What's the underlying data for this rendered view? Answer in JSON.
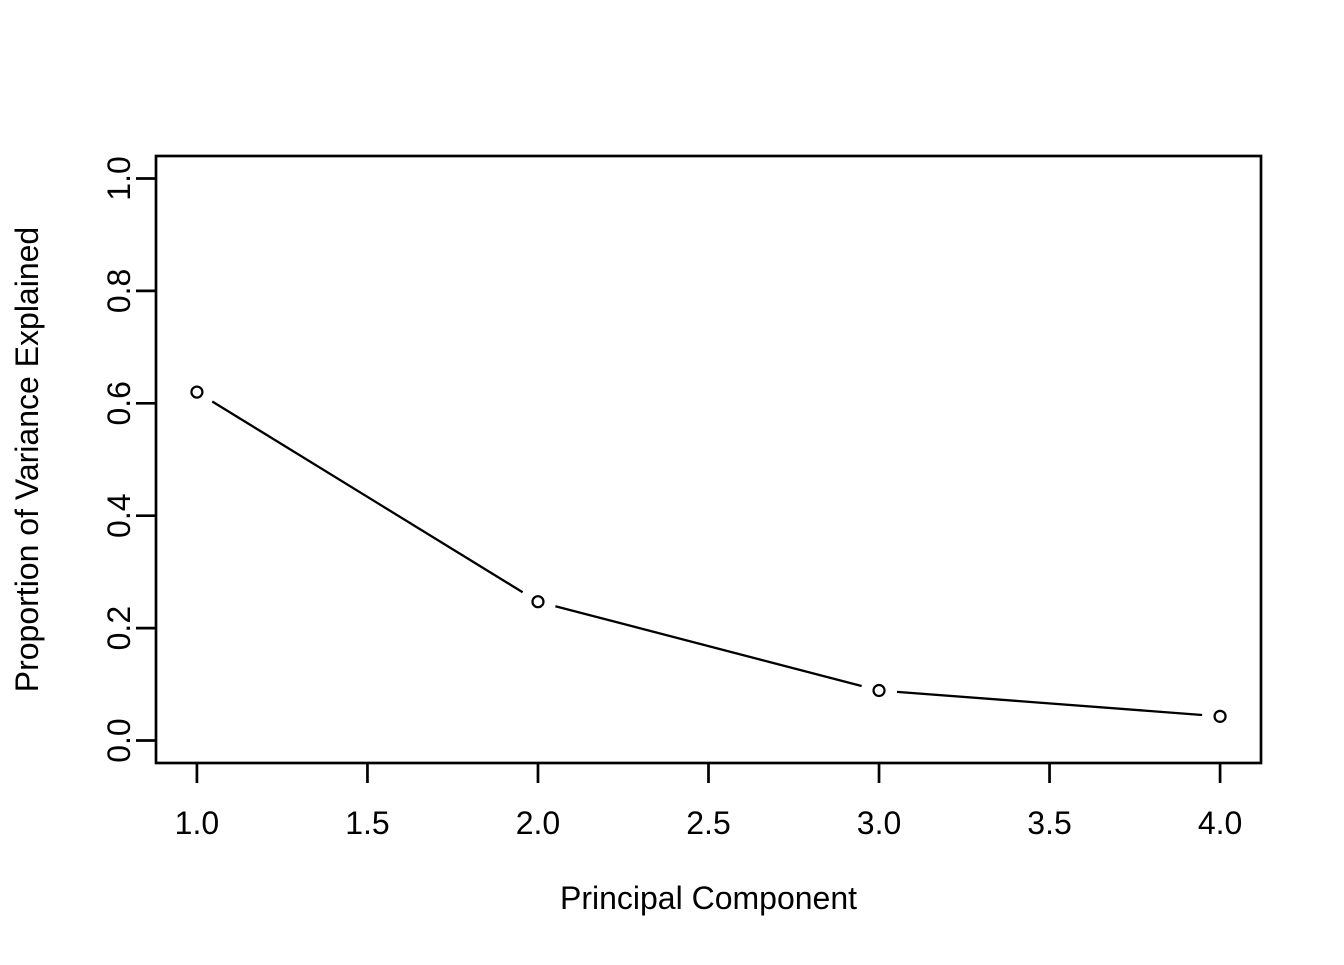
{
  "figure": {
    "background": "#ffffff",
    "foreground": "#000000"
  },
  "chart_data": {
    "type": "line",
    "style": "R-base-type-b-scatter-line",
    "title": "",
    "x": [
      1,
      2,
      3,
      4
    ],
    "y": [
      0.62,
      0.247,
      0.089,
      0.043
    ],
    "xlabel": "Principal Component",
    "ylabel": "Proportion of Variance Explained",
    "xticks": [
      1.0,
      1.5,
      2.0,
      2.5,
      3.0,
      3.5,
      4.0
    ],
    "xtick_labels": [
      "1.0",
      "1.5",
      "2.0",
      "2.5",
      "3.0",
      "3.5",
      "4.0"
    ],
    "yticks": [
      0.0,
      0.2,
      0.4,
      0.6,
      0.8,
      1.0
    ],
    "ytick_labels": [
      "0.0",
      "0.2",
      "0.4",
      "0.6",
      "0.8",
      "1.0"
    ],
    "xlim": [
      0.88,
      4.12
    ],
    "ylim": [
      -0.04,
      1.04
    ],
    "grid": false,
    "legend": null,
    "marker": "open-circle",
    "line_color": "#000000",
    "marker_color": "#000000",
    "background": "#ffffff"
  }
}
